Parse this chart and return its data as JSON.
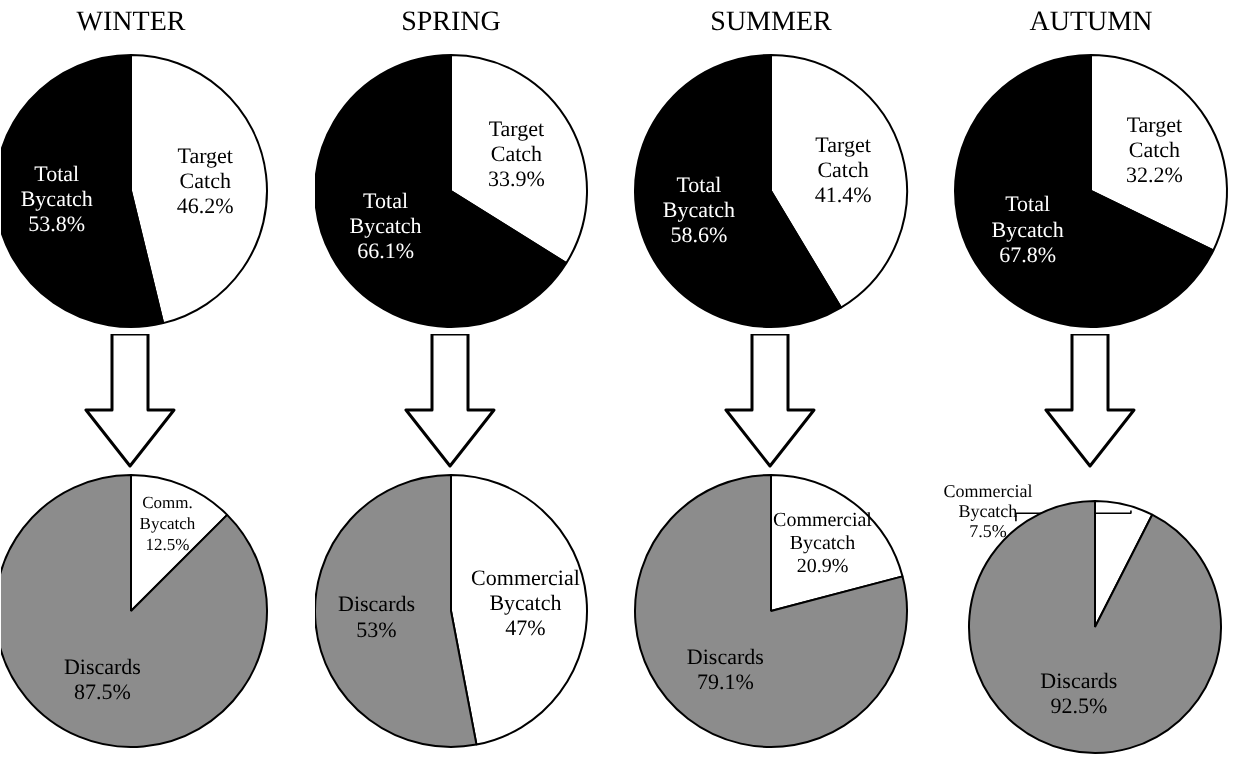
{
  "chart_data": [
    {
      "type": "pie",
      "title": "WINTER",
      "categories": [
        "Target Catch",
        "Total Bycatch"
      ],
      "values": [
        46.2,
        53.8
      ],
      "value_labels": [
        "46.2%",
        "53.8%"
      ],
      "colors": [
        "#ffffff",
        "#000000"
      ]
    },
    {
      "type": "pie",
      "title": "SPRING",
      "categories": [
        "Target Catch",
        "Total Bycatch"
      ],
      "values": [
        33.9,
        66.1
      ],
      "value_labels": [
        "33.9%",
        "66.1%"
      ],
      "colors": [
        "#ffffff",
        "#000000"
      ]
    },
    {
      "type": "pie",
      "title": "SUMMER",
      "categories": [
        "Target Catch",
        "Total Bycatch"
      ],
      "values": [
        41.4,
        58.6
      ],
      "value_labels": [
        "41.4%",
        "58.6%"
      ],
      "colors": [
        "#ffffff",
        "#000000"
      ]
    },
    {
      "type": "pie",
      "title": "AUTUMN",
      "categories": [
        "Target Catch",
        "Total Bycatch"
      ],
      "values": [
        32.2,
        67.8
      ],
      "value_labels": [
        "32.2%",
        "67.8%"
      ],
      "colors": [
        "#ffffff",
        "#000000"
      ]
    },
    {
      "type": "pie",
      "categories": [
        "Comm. Bycatch",
        "Discards"
      ],
      "values": [
        12.5,
        87.5
      ],
      "value_labels": [
        "12.5%",
        "87.5%"
      ],
      "colors": [
        "#ffffff",
        "#8c8c8c"
      ]
    },
    {
      "type": "pie",
      "categories": [
        "Commercial Bycatch",
        "Discards"
      ],
      "values": [
        47,
        53
      ],
      "value_labels": [
        "47%",
        "53%"
      ],
      "colors": [
        "#ffffff",
        "#8c8c8c"
      ]
    },
    {
      "type": "pie",
      "categories": [
        "Commercial Bycatch",
        "Discards"
      ],
      "values": [
        20.9,
        79.1
      ],
      "value_labels": [
        "20.9%",
        "79.1%"
      ],
      "colors": [
        "#ffffff",
        "#8c8c8c"
      ]
    },
    {
      "type": "pie",
      "categories": [
        "Commercial Bycatch",
        "Discards"
      ],
      "values": [
        7.5,
        92.5
      ],
      "value_labels": [
        "7.5%",
        "92.5%"
      ],
      "colors": [
        "#ffffff",
        "#8c8c8c"
      ]
    }
  ]
}
